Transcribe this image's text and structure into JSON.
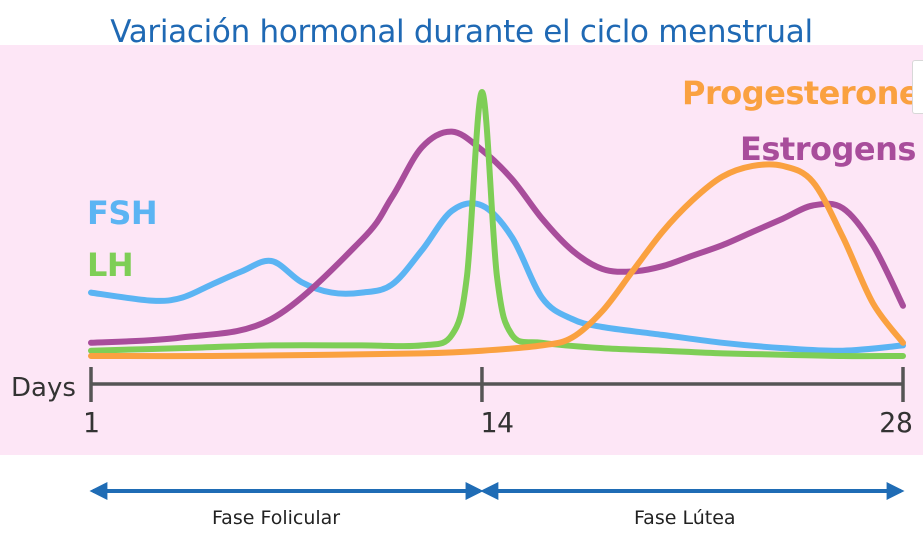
{
  "chart_data": {
    "type": "line",
    "title": "Variación hormonal durante el ciclo menstrual",
    "xlabel": "Days",
    "ylabel": "",
    "x_ticks": [
      "1",
      "14",
      "28"
    ],
    "xlim": [
      1,
      28
    ],
    "ylim": [
      0,
      100
    ],
    "grid": false,
    "y_axis_shown": false,
    "series": [
      {
        "name": "FSH",
        "color": "#5bb4f3",
        "x": [
          1,
          3,
          4,
          5,
          6,
          7,
          8,
          9,
          10,
          11,
          12,
          13,
          14,
          15,
          16,
          17,
          18,
          20,
          22,
          24,
          26,
          28
        ],
        "y": [
          24,
          21,
          22,
          27,
          32,
          36,
          28,
          24,
          24,
          27,
          40,
          55,
          57,
          45,
          22,
          14,
          11,
          8,
          5,
          3,
          2,
          4
        ]
      },
      {
        "name": "LH",
        "color": "#7ece56",
        "x": [
          1,
          4,
          7,
          10,
          12,
          13,
          13.5,
          14,
          14.5,
          15,
          16,
          18,
          20,
          22,
          24,
          26,
          28
        ],
        "y": [
          2,
          3,
          4,
          4,
          4,
          8,
          30,
          100,
          30,
          8,
          5,
          3,
          2,
          1,
          0.5,
          0,
          0
        ]
      },
      {
        "name": "Estrogens",
        "color": "#a84d9b",
        "x": [
          1,
          4,
          7,
          10,
          11,
          12,
          13,
          14,
          15,
          16,
          17,
          18,
          19,
          20,
          21,
          22,
          23,
          24,
          25,
          26,
          27,
          28
        ],
        "y": [
          5,
          7,
          14,
          44,
          60,
          79,
          85,
          78,
          67,
          52,
          40,
          33,
          32,
          34,
          38,
          42,
          47,
          52,
          57,
          56,
          42,
          19
        ]
      },
      {
        "name": "Progesterone",
        "color": "#faa140",
        "x": [
          1,
          5,
          9,
          12,
          14,
          16,
          17,
          18,
          19,
          20,
          21,
          22,
          23,
          24,
          25,
          26,
          27,
          28
        ],
        "y": [
          0,
          0,
          0.5,
          1,
          2,
          4,
          7,
          17,
          32,
          47,
          59,
          68,
          72,
          72,
          66,
          45,
          20,
          5
        ]
      }
    ],
    "phases": [
      {
        "name": "Fase Folicular",
        "from": 1,
        "to": 14
      },
      {
        "name": "Fase Lútea",
        "from": 14,
        "to": 28
      }
    ],
    "axis_color": "#555555",
    "phase_arrow_color": "#1f6cb5",
    "background_color": "#fde6f6",
    "title_color": "#1f69b4"
  }
}
